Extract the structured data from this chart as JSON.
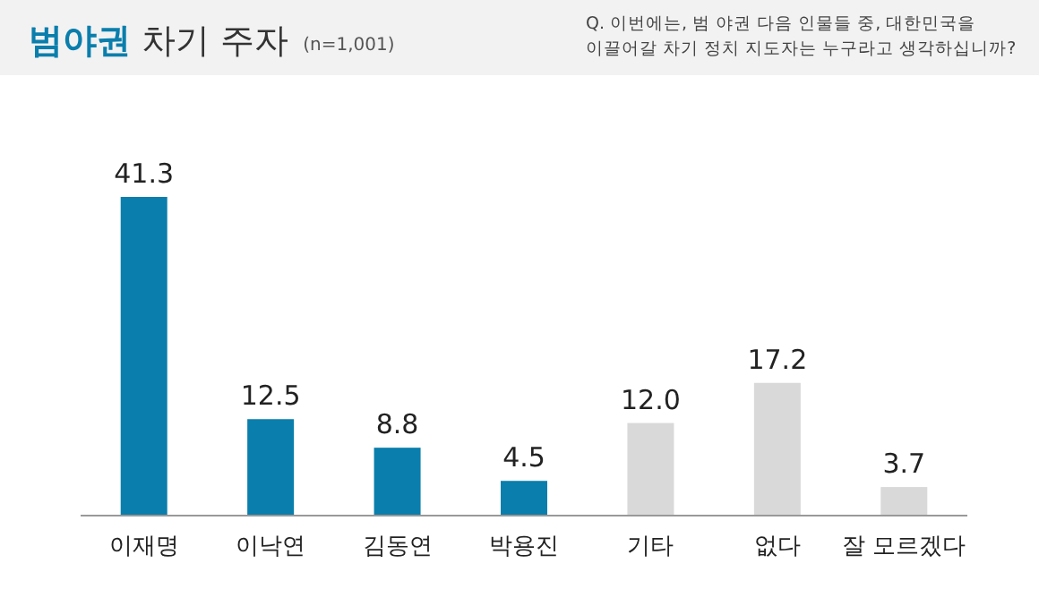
{
  "chart_data": {
    "type": "bar",
    "title": "**범야권** 차기 주자",
    "subtitle": "(n=1,001)",
    "annotations": [
      "Q. 이번에는, 범 야권 다음 인물들 중, 대한민국을 이끌어갈 차기 정치 지도자는 누구라고 생각하십니까?"
    ],
    "categories": [
      "이재명",
      "이낙연",
      "김동연",
      "박용진",
      "기타",
      "없다",
      "잘 모르겠다"
    ],
    "values": [
      41.3,
      12.5,
      8.8,
      4.5,
      12.0,
      17.2,
      3.7
    ],
    "colors": [
      "#0a7eac",
      "#0a7eac",
      "#0a7eac",
      "#0a7eac",
      "#d9d9d9",
      "#d9d9d9",
      "#d9d9d9"
    ],
    "value_labels": [
      "41.3",
      "12.5",
      "8.8",
      "4.5",
      "12.0",
      "17.2",
      "3.7"
    ]
  }
}
